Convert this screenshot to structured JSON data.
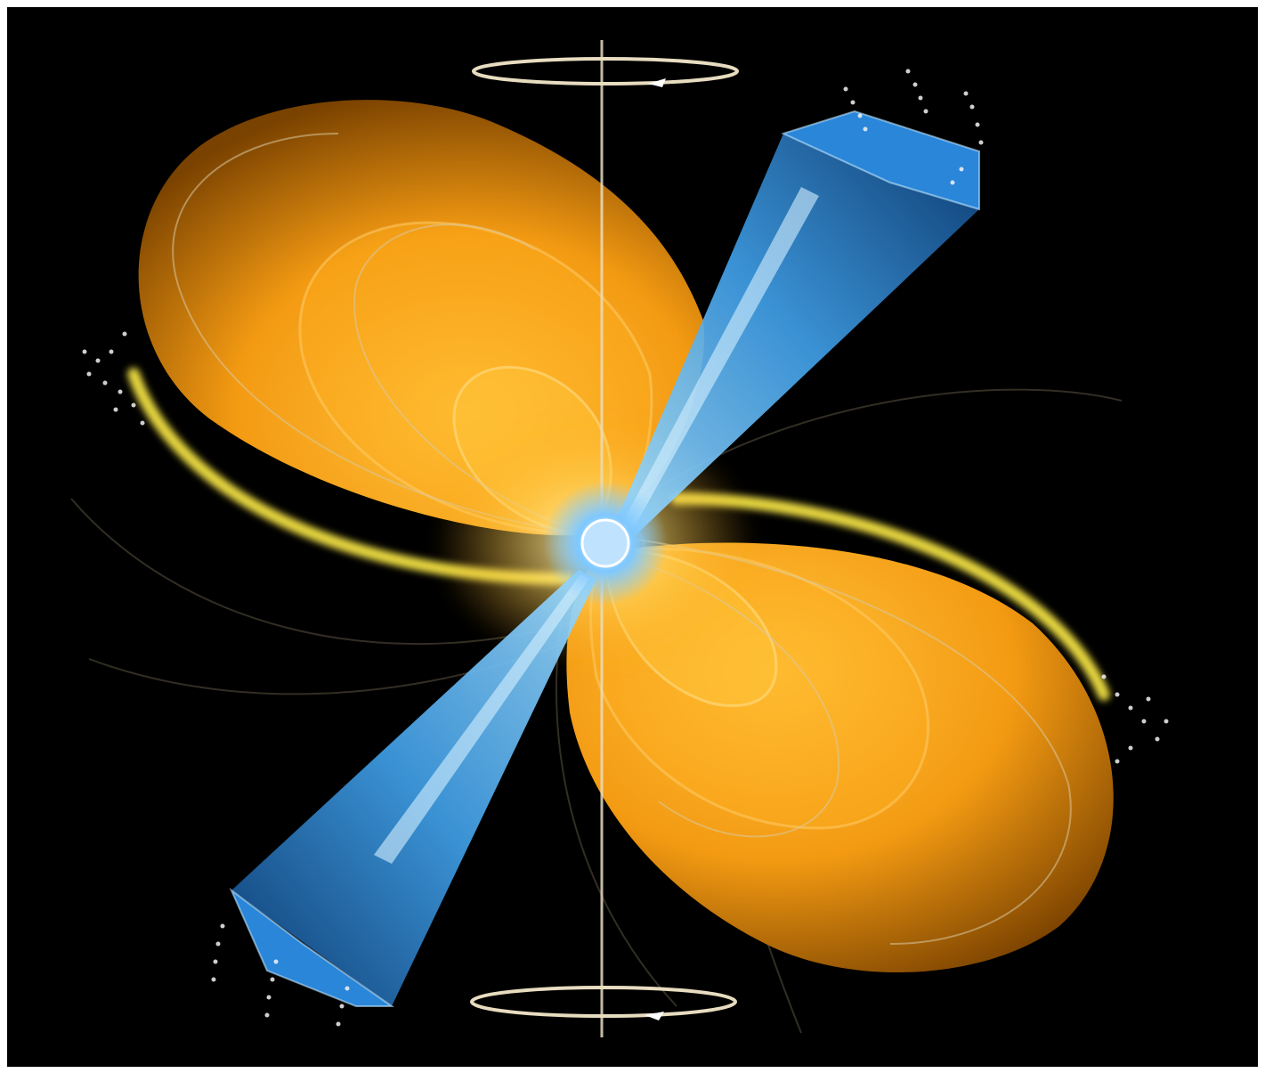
{
  "image": {
    "colors": {
      "frame": "#ffffff",
      "background": "#000000",
      "lobe_light": "#ffc23a",
      "lobe_mid": "#f39a12",
      "lobe_dark": "#7a4200",
      "lobe_edge": "#e6d640",
      "beam_light": "#9fdcff",
      "beam_mid": "#3f9ee6",
      "beam_dark": "#0d3f7a",
      "star_core": "#ffffff",
      "star_glow": "#7ec8ff",
      "field_lines": "#d9c9a0",
      "axis": "#e8dcc0",
      "particles": "#f2f2f2"
    },
    "subjects": [
      "neutron-star",
      "magnetic-field-lobes",
      "radiation-beams",
      "rotation-axis",
      "spin-arrows",
      "particle-streams"
    ]
  }
}
